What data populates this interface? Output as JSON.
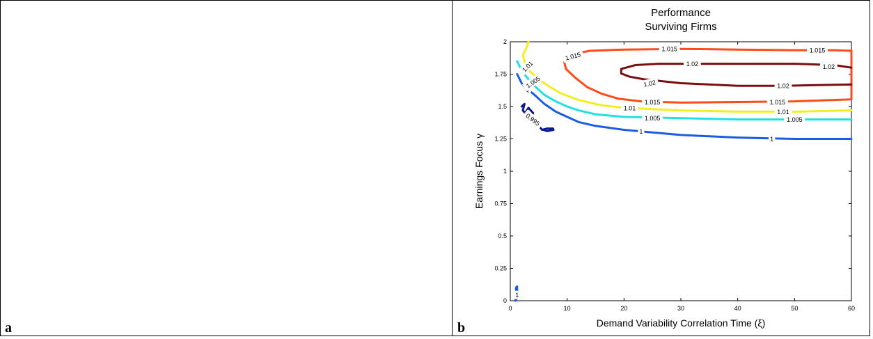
{
  "panels": {
    "a_label": "a",
    "b_label": "b",
    "trailing_mark": "."
  },
  "chart_data": {
    "type": "contour",
    "title": [
      "Performance",
      "Surviving Firms"
    ],
    "xlabel": "Demand Variability Correlation Time (ξ)",
    "ylabel": "Earnings Focus γ",
    "xlim": [
      0,
      60
    ],
    "ylim": [
      0,
      2
    ],
    "xticks": [
      0,
      10,
      20,
      30,
      40,
      50,
      60
    ],
    "yticks": [
      0,
      0.25,
      0.5,
      0.75,
      1,
      1.25,
      1.5,
      1.75,
      2
    ],
    "xtick_labels": [
      "0",
      "10",
      "20",
      "30",
      "40",
      "50",
      "60"
    ],
    "ytick_labels": [
      "0",
      "0.25",
      "0.5",
      "0.75",
      "1",
      "1.25",
      "1.5",
      "1.75",
      "2"
    ],
    "grid": false,
    "contours": [
      {
        "level": "0.995",
        "color": "#0a1a8c",
        "points": [
          [
            2,
            1.5
          ],
          [
            2.5,
            1.52
          ],
          [
            2.2,
            1.47
          ],
          [
            2.6,
            1.45
          ],
          [
            3.2,
            1.49
          ],
          [
            4,
            1.45
          ],
          [
            3.8,
            1.42
          ],
          [
            4.6,
            1.39
          ],
          [
            4.9,
            1.36
          ],
          [
            5.2,
            1.34
          ],
          [
            5.6,
            1.32
          ],
          [
            6.5,
            1.33
          ],
          [
            7.5,
            1.33
          ],
          [
            7.6,
            1.32
          ],
          [
            6.5,
            1.31
          ],
          [
            5.8,
            1.32
          ]
        ],
        "labels": [
          {
            "x": 4.0,
            "y": 1.4,
            "text": "0.995",
            "angle": 38
          }
        ]
      },
      {
        "level": "1",
        "color": "#1a5ce6",
        "points": [
          [
            1.2,
            1.75
          ],
          [
            2,
            1.68
          ],
          [
            3,
            1.63
          ],
          [
            4,
            1.6
          ],
          [
            5,
            1.56
          ],
          [
            6,
            1.52
          ],
          [
            7,
            1.49
          ],
          [
            8,
            1.46
          ],
          [
            10,
            1.42
          ],
          [
            12,
            1.38
          ],
          [
            15,
            1.35
          ],
          [
            20,
            1.32
          ],
          [
            25,
            1.3
          ],
          [
            30,
            1.28
          ],
          [
            35,
            1.27
          ],
          [
            40,
            1.26
          ],
          [
            45,
            1.255
          ],
          [
            50,
            1.25
          ],
          [
            55,
            1.25
          ],
          [
            60,
            1.25
          ]
        ],
        "labels": [
          {
            "x": 3.2,
            "y": 1.63,
            "text": "1",
            "angle": 30
          },
          {
            "x": 23,
            "y": 1.31,
            "text": "1",
            "angle": 0
          },
          {
            "x": 46,
            "y": 1.25,
            "text": "1",
            "angle": 0
          }
        ]
      },
      {
        "level": "1.005",
        "color": "#20e0e0",
        "points": [
          [
            1.2,
            1.85
          ],
          [
            2,
            1.78
          ],
          [
            3,
            1.72
          ],
          [
            4,
            1.67
          ],
          [
            5,
            1.63
          ],
          [
            6,
            1.59
          ],
          [
            8,
            1.54
          ],
          [
            10,
            1.5
          ],
          [
            12,
            1.47
          ],
          [
            15,
            1.44
          ],
          [
            20,
            1.42
          ],
          [
            30,
            1.41
          ],
          [
            40,
            1.4
          ],
          [
            50,
            1.4
          ],
          [
            60,
            1.4
          ]
        ],
        "labels": [
          {
            "x": 4.0,
            "y": 1.69,
            "text": "1.005",
            "angle": -35
          },
          {
            "x": 25,
            "y": 1.41,
            "text": "1.005",
            "angle": 0
          },
          {
            "x": 50,
            "y": 1.4,
            "text": "1.005",
            "angle": 0
          }
        ]
      },
      {
        "level": "1.01",
        "color": "#f2ee24",
        "points": [
          [
            3.2,
            2.0
          ],
          [
            2.8,
            1.95
          ],
          [
            2.2,
            1.9
          ],
          [
            2.6,
            1.83
          ],
          [
            3.5,
            1.77
          ],
          [
            5,
            1.71
          ],
          [
            7,
            1.65
          ],
          [
            9,
            1.6
          ],
          [
            12,
            1.55
          ],
          [
            16,
            1.51
          ],
          [
            20,
            1.49
          ],
          [
            30,
            1.47
          ],
          [
            40,
            1.46
          ],
          [
            50,
            1.46
          ],
          [
            60,
            1.47
          ]
        ],
        "labels": [
          {
            "x": 3.0,
            "y": 1.81,
            "text": "1.01",
            "angle": -45
          },
          {
            "x": 21,
            "y": 1.49,
            "text": "1.01",
            "angle": 0
          },
          {
            "x": 48,
            "y": 1.46,
            "text": "1.01",
            "angle": 0
          }
        ]
      },
      {
        "level": "1.015",
        "color": "#ff4a1a",
        "points": [
          [
            9.5,
            1.88
          ],
          [
            11.5,
            1.91
          ],
          [
            14,
            1.93
          ],
          [
            20,
            1.94
          ],
          [
            30,
            1.945
          ],
          [
            40,
            1.94
          ],
          [
            50,
            1.935
          ],
          [
            57,
            1.935
          ],
          [
            60,
            1.93
          ],
          [
            60,
            1.555
          ],
          [
            50,
            1.54
          ],
          [
            40,
            1.535
          ],
          [
            30,
            1.53
          ],
          [
            23,
            1.54
          ],
          [
            19,
            1.56
          ],
          [
            16,
            1.6
          ],
          [
            13.5,
            1.65
          ],
          [
            11.5,
            1.72
          ],
          [
            9.8,
            1.79
          ],
          [
            9.5,
            1.84
          ],
          [
            9.5,
            1.88
          ]
        ],
        "labels": [
          {
            "x": 11.0,
            "y": 1.89,
            "text": "1.015",
            "angle": -15
          },
          {
            "x": 28,
            "y": 1.945,
            "text": "1.015",
            "angle": 0
          },
          {
            "x": 54,
            "y": 1.935,
            "text": "1.015",
            "angle": 0
          },
          {
            "x": 25,
            "y": 1.535,
            "text": "1.015",
            "angle": 0
          },
          {
            "x": 47,
            "y": 1.535,
            "text": "1.015",
            "angle": 0
          }
        ]
      },
      {
        "level": "1.02",
        "color": "#7a0e0e",
        "points": [
          [
            60,
            1.8
          ],
          [
            57,
            1.82
          ],
          [
            50,
            1.83
          ],
          [
            40,
            1.83
          ],
          [
            32,
            1.83
          ],
          [
            26,
            1.83
          ],
          [
            22,
            1.82
          ],
          [
            19.5,
            1.79
          ],
          [
            19.5,
            1.755
          ],
          [
            21,
            1.73
          ],
          [
            23.5,
            1.71
          ],
          [
            30,
            1.68
          ],
          [
            40,
            1.66
          ],
          [
            48,
            1.66
          ],
          [
            54,
            1.665
          ],
          [
            60,
            1.67
          ]
        ],
        "labels": [
          {
            "x": 32,
            "y": 1.83,
            "text": "1.02",
            "angle": 0
          },
          {
            "x": 56,
            "y": 1.81,
            "text": "1.02",
            "angle": 0
          },
          {
            "x": 24.5,
            "y": 1.68,
            "text": "1.02",
            "angle": -12
          },
          {
            "x": 48,
            "y": 1.66,
            "text": "1.02",
            "angle": 0
          }
        ]
      },
      {
        "level": "1",
        "color": "#1a5ce6",
        "points": [
          [
            0.9,
            0.0
          ],
          [
            1.0,
            0.04
          ],
          [
            1.0,
            0.1
          ],
          [
            1.2,
            0.11
          ],
          [
            1.2,
            0.02
          ],
          [
            0.9,
            0.0
          ]
        ],
        "labels": [
          {
            "x": 1.2,
            "y": 0.045,
            "text": "1",
            "angle": 0
          }
        ]
      }
    ]
  }
}
